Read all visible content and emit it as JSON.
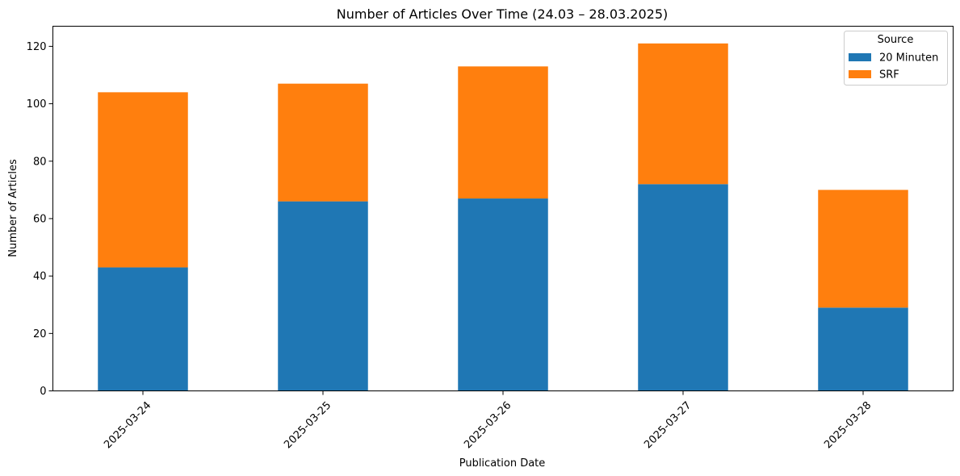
{
  "chart_data": {
    "type": "bar",
    "stacked": true,
    "title": "Number of Articles Over Time (24.03 – 28.03.2025)",
    "xlabel": "Publication Date",
    "ylabel": "Number of Articles",
    "categories": [
      "2025-03-24",
      "2025-03-25",
      "2025-03-26",
      "2025-03-27",
      "2025-03-28"
    ],
    "series": [
      {
        "name": "20 Minuten",
        "values": [
          43,
          66,
          67,
          72,
          29
        ],
        "color": "#1f77b4"
      },
      {
        "name": "SRF",
        "values": [
          61,
          41,
          46,
          49,
          41
        ],
        "color": "#ff7f0e"
      }
    ],
    "ylim": [
      0,
      127
    ],
    "yticks": [
      0,
      20,
      40,
      60,
      80,
      100,
      120
    ],
    "grid": false,
    "legend": {
      "title": "Source",
      "placement": "top-right"
    }
  }
}
